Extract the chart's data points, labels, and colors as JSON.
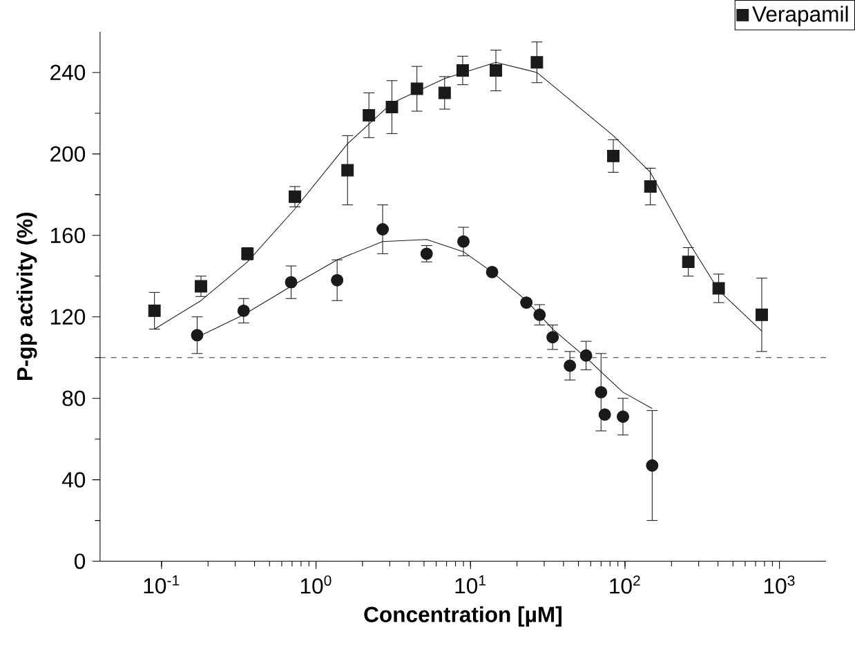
{
  "chart_data": {
    "type": "scatter",
    "xlabel": "Concentration [µM]",
    "ylabel": "P-gp activity (%)",
    "log": "x",
    "xlim": [
      0.04,
      2000
    ],
    "ylim": [
      0,
      260
    ],
    "xticks": [
      {
        "value": 0.1,
        "label": "10$^{-1}$"
      },
      {
        "value": 1,
        "label": "10$^{0}$"
      },
      {
        "value": 10,
        "label": "10$^{1}$"
      },
      {
        "value": 100,
        "label": "10$^{2}$"
      },
      {
        "value": 1000,
        "label": "10$^{3}$"
      }
    ],
    "yticks": [
      0,
      40,
      80,
      120,
      160,
      200,
      240
    ],
    "grid": false,
    "legend": "top right",
    "ref_lines": [
      {
        "axis": "y",
        "value": 100,
        "color": "#333333",
        "line_style": "dashed"
      }
    ],
    "series": [
      {
        "name": "Verapamil",
        "color": "#1a1a1a",
        "marker": "square",
        "x": [
          0.09,
          0.18,
          0.36,
          0.73,
          1.6,
          2.2,
          3.1,
          4.5,
          6.8,
          8.9,
          14.6,
          26.9,
          84,
          146,
          257,
          404,
          768
        ],
        "values": [
          123,
          135,
          151,
          179,
          192,
          219,
          223,
          232,
          230,
          241,
          241,
          245,
          199,
          184,
          147,
          134,
          121
        ],
        "errors": [
          9,
          5,
          3,
          5,
          17,
          11,
          13,
          11,
          8,
          7,
          10,
          10,
          8,
          9,
          7,
          7,
          18
        ]
      },
      {
        "color": "#1a1a1a",
        "marker": "circle",
        "x": [
          0.17,
          0.34,
          0.69,
          1.37,
          2.7,
          5.2,
          9.0,
          13.8,
          23,
          28,
          34,
          44,
          56,
          70,
          74,
          97,
          150
        ],
        "values": [
          111,
          123,
          137,
          138,
          163,
          151,
          157,
          142,
          127,
          121,
          110,
          96,
          101,
          83,
          72,
          71,
          47
        ],
        "errors": [
          9,
          6,
          8,
          10,
          12,
          4,
          7,
          null,
          null,
          5,
          6,
          7,
          7,
          19,
          null,
          9,
          27
        ]
      },
      {
        "type": "line",
        "color": "#1a1a1a",
        "marker": "none",
        "line_style": "solid",
        "x": [
          0.09,
          0.18,
          0.36,
          0.73,
          1.6,
          3.1,
          6.8,
          14.6,
          26.9,
          84,
          146,
          257,
          404,
          768
        ],
        "values": [
          114,
          128,
          147,
          173,
          205,
          225,
          237,
          245,
          240,
          209,
          191,
          157,
          133,
          113
        ]
      },
      {
        "type": "line",
        "color": "#1a1a1a",
        "marker": "none",
        "line_style": "solid",
        "x": [
          0.17,
          0.34,
          0.69,
          1.37,
          2.7,
          5.2,
          9.0,
          13.8,
          23,
          34,
          56,
          70,
          97,
          150
        ],
        "values": [
          110,
          121,
          135,
          148,
          157,
          158,
          152,
          142,
          128,
          114,
          100,
          93,
          83,
          75
        ]
      }
    ]
  }
}
